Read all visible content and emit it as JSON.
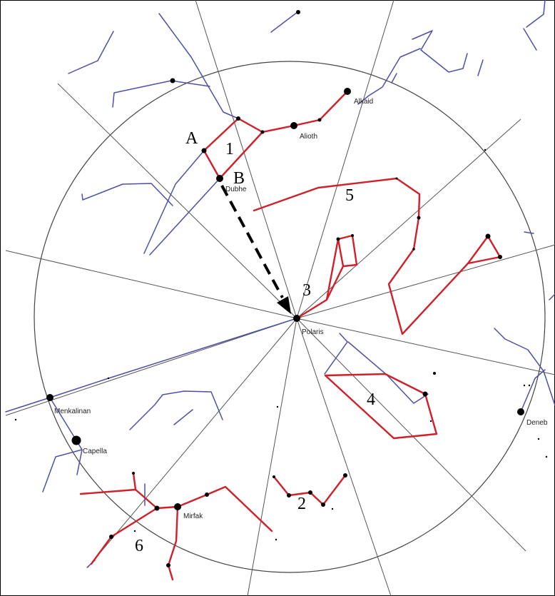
{
  "chart": {
    "colors": {
      "background": "#ffffff",
      "grid_lines": "#555555",
      "highlighted_constellations": "#d0202a",
      "other_constellations": "#4e4fa8",
      "stars": "#000000",
      "arrow": "#000000"
    },
    "star_labels": {
      "alkaid": "Alkaid",
      "alioth": "Alioth",
      "dubhe": "Dubhe",
      "polaris": "Polaris",
      "menkalinan": "Menkalinan",
      "capella": "Capella",
      "deneb": "Deneb",
      "mirfak": "Mirfak"
    },
    "markers": {
      "a": "A",
      "b": "B",
      "one": "1",
      "two": "2",
      "three": "3",
      "four": "4",
      "five": "5",
      "six": "6"
    },
    "arrow": {
      "from": "Dubhe",
      "to": "Polaris",
      "style": "dashed"
    }
  }
}
